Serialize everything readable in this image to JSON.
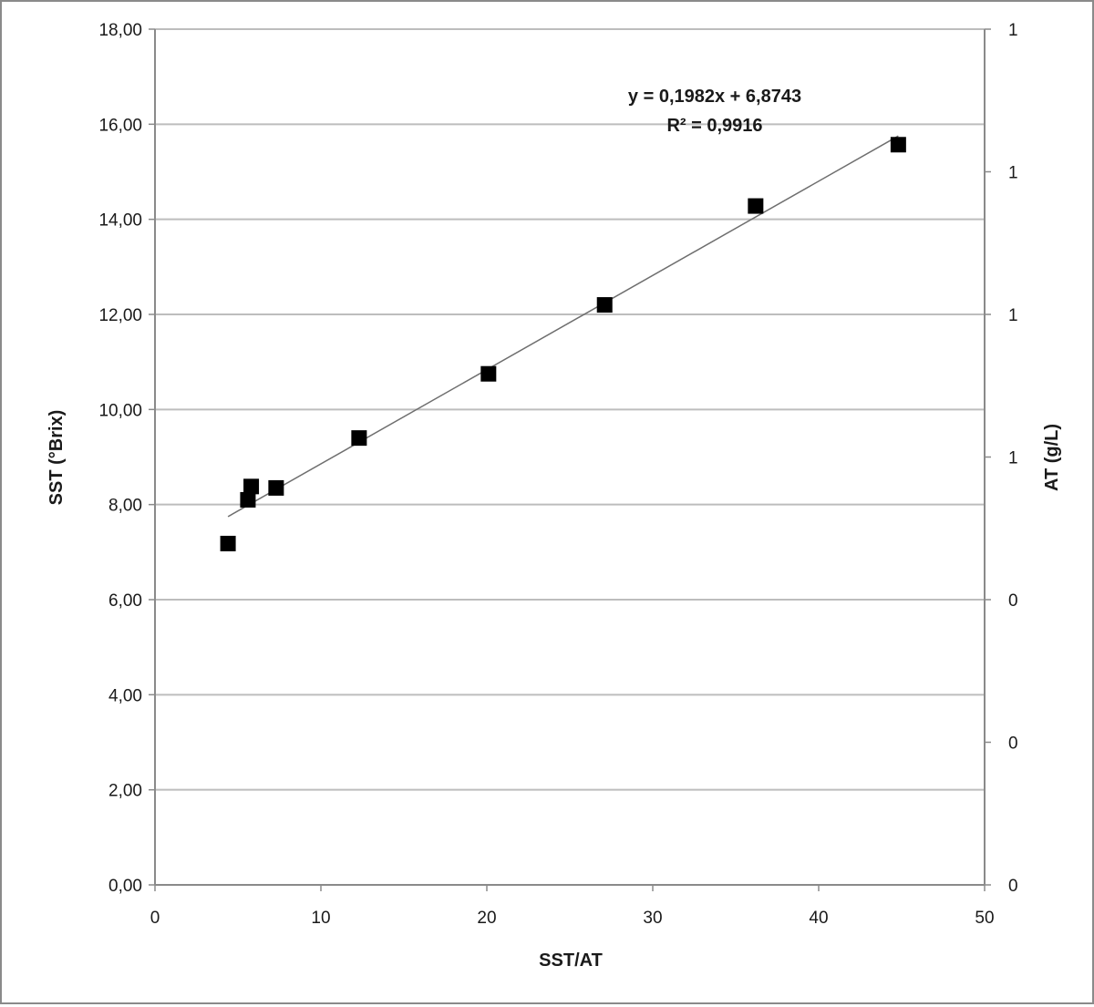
{
  "chart_data": {
    "type": "scatter",
    "xlabel": "SST/AT",
    "ylabel": "SST (°Brix)",
    "y2label": "AT (g/L)",
    "xlim": [
      0,
      50
    ],
    "ylim": [
      0,
      18
    ],
    "xticks": [
      "0",
      "10",
      "20",
      "30",
      "40",
      "50"
    ],
    "yticks": [
      "0,00",
      "2,00",
      "4,00",
      "6,00",
      "8,00",
      "10,00",
      "12,00",
      "14,00",
      "16,00",
      "18,00"
    ],
    "y2ticks": [
      "0",
      "0",
      "0",
      "1",
      "1",
      "1",
      "1"
    ],
    "grid": "horizontal",
    "marker": "square",
    "marker_color": "#000000",
    "series": [
      {
        "x": [
          4.4,
          5.6,
          5.8,
          7.3,
          12.3,
          20.1,
          27.1,
          36.2,
          44.8
        ],
        "y": [
          7.18,
          8.1,
          8.38,
          8.35,
          9.4,
          10.75,
          12.2,
          14.28,
          15.57
        ]
      }
    ],
    "trendline": {
      "type": "linear",
      "slope": 0.1982,
      "intercept": 6.8743,
      "x_range": [
        4.4,
        44.8
      ],
      "equation": "y = 0,1982x + 6,8743",
      "r2": "R² = 0,9916"
    }
  }
}
